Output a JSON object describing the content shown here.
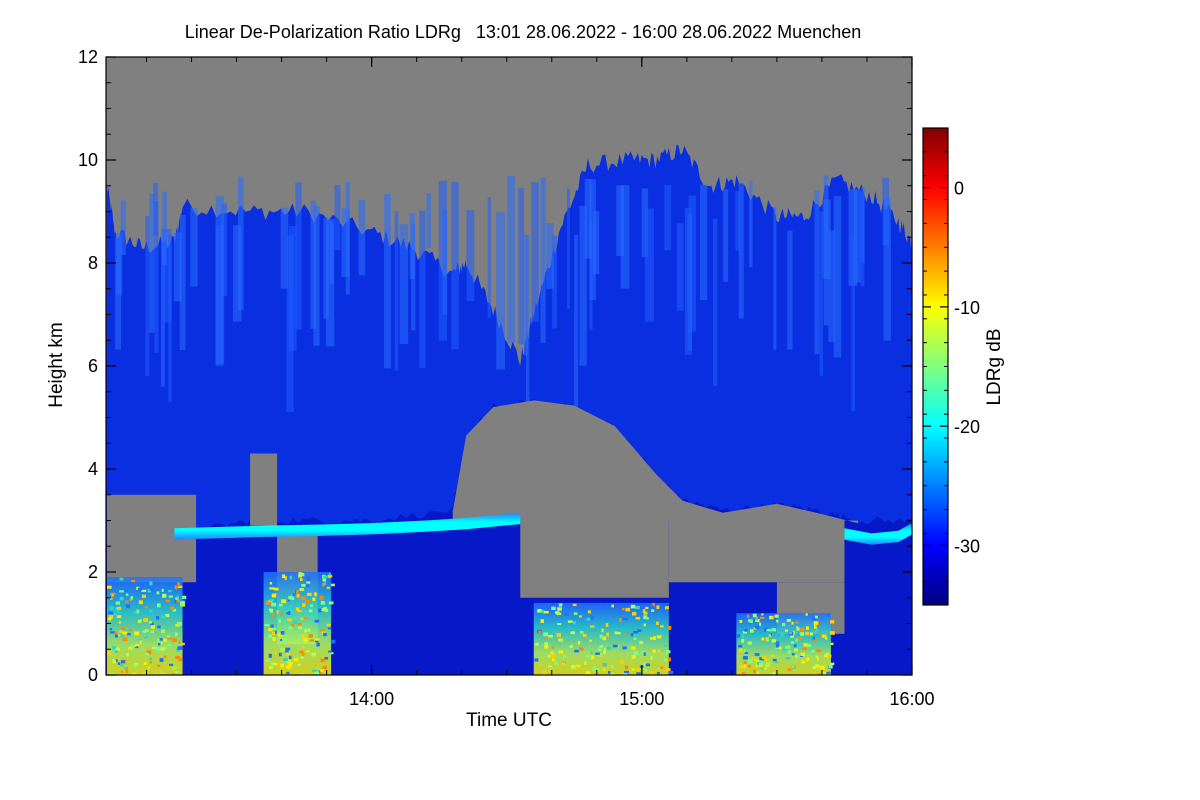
{
  "chart_data": {
    "type": "heatmap",
    "title": "Linear De-Polarization Ratio LDRg   13:01 28.06.2022 - 16:00 28.06.2022 Muenchen",
    "xlabel": "Time UTC",
    "ylabel": "Height km",
    "colorbar_label": "LDRg dB",
    "x_start_hour": 13.0167,
    "x_end_hour": 16.0,
    "xlim": [
      13.0167,
      16.0
    ],
    "ylim": [
      0,
      12
    ],
    "x_ticks": [
      {
        "value": 14.0,
        "label": "14:00"
      },
      {
        "value": 15.0,
        "label": "15:00"
      },
      {
        "value": 16.0,
        "label": "16:00"
      }
    ],
    "y_ticks": [
      {
        "value": 0,
        "label": "0"
      },
      {
        "value": 2,
        "label": "2"
      },
      {
        "value": 4,
        "label": "4"
      },
      {
        "value": 6,
        "label": "6"
      },
      {
        "value": 8,
        "label": "8"
      },
      {
        "value": 10,
        "label": "10"
      },
      {
        "value": 12,
        "label": "12"
      }
    ],
    "colorbar": {
      "range": [
        -35,
        5
      ],
      "ticks": [
        {
          "value": 0,
          "label": "0"
        },
        {
          "value": -10,
          "label": "-10"
        },
        {
          "value": -20,
          "label": "-20"
        },
        {
          "value": -30,
          "label": "-30"
        }
      ],
      "colormap": [
        "#00007f",
        "#0000ff",
        "#007fff",
        "#00ffff",
        "#7fff7f",
        "#ffff00",
        "#ff7f00",
        "#ff0000",
        "#7f0000"
      ]
    },
    "no_signal_color": "#808080",
    "cloud_top_profile": [
      {
        "t": 13.02,
        "h": 9.5
      },
      {
        "t": 13.05,
        "h": 8.6
      },
      {
        "t": 13.15,
        "h": 8.3
      },
      {
        "t": 13.27,
        "h": 8.4
      },
      {
        "t": 13.3,
        "h": 9.1
      },
      {
        "t": 13.55,
        "h": 9.0
      },
      {
        "t": 13.75,
        "h": 9.0
      },
      {
        "t": 14.0,
        "h": 8.6
      },
      {
        "t": 14.15,
        "h": 8.3
      },
      {
        "t": 14.3,
        "h": 7.8
      },
      {
        "t": 14.35,
        "h": 8.0
      },
      {
        "t": 14.45,
        "h": 7.1
      },
      {
        "t": 14.55,
        "h": 6.1
      },
      {
        "t": 14.6,
        "h": 7.0
      },
      {
        "t": 14.7,
        "h": 8.7
      },
      {
        "t": 14.8,
        "h": 9.9
      },
      {
        "t": 14.95,
        "h": 10.0
      },
      {
        "t": 15.05,
        "h": 10.0
      },
      {
        "t": 15.15,
        "h": 10.2
      },
      {
        "t": 15.25,
        "h": 9.5
      },
      {
        "t": 15.35,
        "h": 9.6
      },
      {
        "t": 15.5,
        "h": 8.9
      },
      {
        "t": 15.6,
        "h": 8.9
      },
      {
        "t": 15.72,
        "h": 9.6
      },
      {
        "t": 15.85,
        "h": 9.3
      },
      {
        "t": 15.95,
        "h": 8.8
      },
      {
        "t": 16.0,
        "h": 8.4
      }
    ],
    "cloud_base_profile": [
      {
        "t": 13.02,
        "h": 3.5
      },
      {
        "t": 13.2,
        "h": 3.3
      },
      {
        "t": 13.35,
        "h": 2.8
      },
      {
        "t": 13.55,
        "h": 3.0
      },
      {
        "t": 13.8,
        "h": 3.0
      },
      {
        "t": 14.0,
        "h": 3.0
      },
      {
        "t": 14.3,
        "h": 3.2
      },
      {
        "t": 14.35,
        "h": 4.6
      },
      {
        "t": 14.45,
        "h": 5.2
      },
      {
        "t": 14.6,
        "h": 5.3
      },
      {
        "t": 14.75,
        "h": 5.2
      },
      {
        "t": 14.9,
        "h": 4.8
      },
      {
        "t": 15.05,
        "h": 3.9
      },
      {
        "t": 15.15,
        "h": 3.4
      },
      {
        "t": 15.3,
        "h": 3.2
      },
      {
        "t": 15.5,
        "h": 3.3
      },
      {
        "t": 15.65,
        "h": 3.2
      },
      {
        "t": 15.8,
        "h": 3.0
      },
      {
        "t": 16.0,
        "h": 3.0
      }
    ],
    "gaps": [
      {
        "t0": 13.02,
        "t1": 13.35,
        "h0": 1.8,
        "h1": 3.5
      },
      {
        "t0": 13.55,
        "t1": 13.65,
        "h0": 2.9,
        "h1": 4.3
      },
      {
        "t0": 13.65,
        "t1": 13.8,
        "h0": 0.6,
        "h1": 2.9
      },
      {
        "t0": 14.55,
        "t1": 15.1,
        "h0": 1.5,
        "h1": 3.0
      },
      {
        "t0": 15.1,
        "t1": 15.75,
        "h0": 1.8,
        "h1": 3.0
      },
      {
        "t0": 15.5,
        "t1": 15.75,
        "h0": 0.8,
        "h1": 1.8
      }
    ],
    "melting_layer": [
      {
        "t": 13.27,
        "h": 2.75
      },
      {
        "t": 13.6,
        "h": 2.8
      },
      {
        "t": 13.8,
        "h": 2.82
      },
      {
        "t": 14.0,
        "h": 2.85
      },
      {
        "t": 14.2,
        "h": 2.9
      },
      {
        "t": 14.35,
        "h": 2.95
      },
      {
        "t": 14.55,
        "h": 3.05
      }
    ],
    "melting_layer_2": [
      {
        "t": 15.75,
        "h": 2.75
      },
      {
        "t": 15.85,
        "h": 2.65
      },
      {
        "t": 15.95,
        "h": 2.7
      },
      {
        "t": 16.0,
        "h": 2.85
      }
    ],
    "precip_regions": [
      {
        "t0": 13.02,
        "t1": 13.3,
        "h0": 0.0,
        "h1": 1.9
      },
      {
        "t0": 13.6,
        "t1": 13.85,
        "h0": 0.0,
        "h1": 2.0
      },
      {
        "t0": 14.6,
        "t1": 15.1,
        "h0": 0.0,
        "h1": 1.4
      },
      {
        "t0": 15.35,
        "t1": 15.7,
        "h0": 0.0,
        "h1": 1.2
      }
    ]
  }
}
